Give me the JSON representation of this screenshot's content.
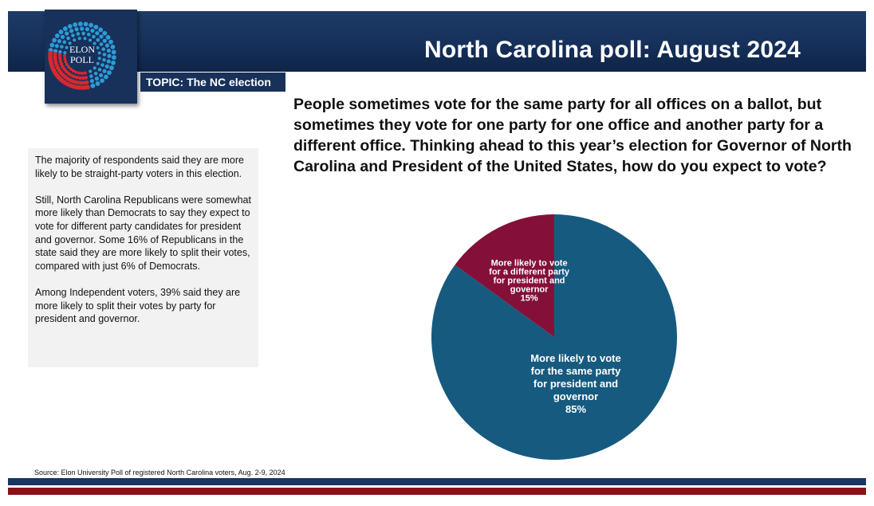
{
  "header": {
    "title": "North Carolina poll: August 2024"
  },
  "logo": {
    "line1": "ELON",
    "line2": "POLL"
  },
  "topic": "TOPIC: The NC election",
  "question": "People sometimes vote for the same party for all offices on a ballot, but sometimes they vote for one party for one office and another party for a different office. Thinking ahead to this year’s election for Governor of North Carolina and President of the United States, how do you expect to vote?",
  "summary": {
    "paragraphs": [
      "The majority of respondents said they are more likely to be straight-party voters in this election.",
      "Still, North Carolina Republicans were somewhat more likely than Democrats to say they expect to vote for different party candidates for president and governor. Some 16% of Republicans in the state said they are more likely to split their votes, compared with just 6% of Democrats.",
      "Among Independent voters, 39% said they are more likely to split their votes by party for president and governor."
    ]
  },
  "chart_data": {
    "type": "pie",
    "title": "",
    "slices": [
      {
        "label": "More likely to vote for the same party for president and governor",
        "label_lines": [
          "More likely to vote",
          "for the same party",
          "for president and",
          "governor"
        ],
        "value": 85,
        "value_label": "85%",
        "color": "#175a7f"
      },
      {
        "label": "More likely to vote for a different party for president and governor",
        "label_lines": [
          "More likely to vote",
          "for a different party",
          "for president and",
          "governor"
        ],
        "value": 15,
        "value_label": "15%",
        "color": "#841039"
      }
    ]
  },
  "source": "Source: Elon University Poll of registered North Carolina voters, Aug. 2-9, 2024",
  "colors": {
    "navy": "#17315a",
    "footer_red": "#8b1118",
    "logo_blue": "#2e9bd6",
    "logo_red": "#d7282f"
  }
}
